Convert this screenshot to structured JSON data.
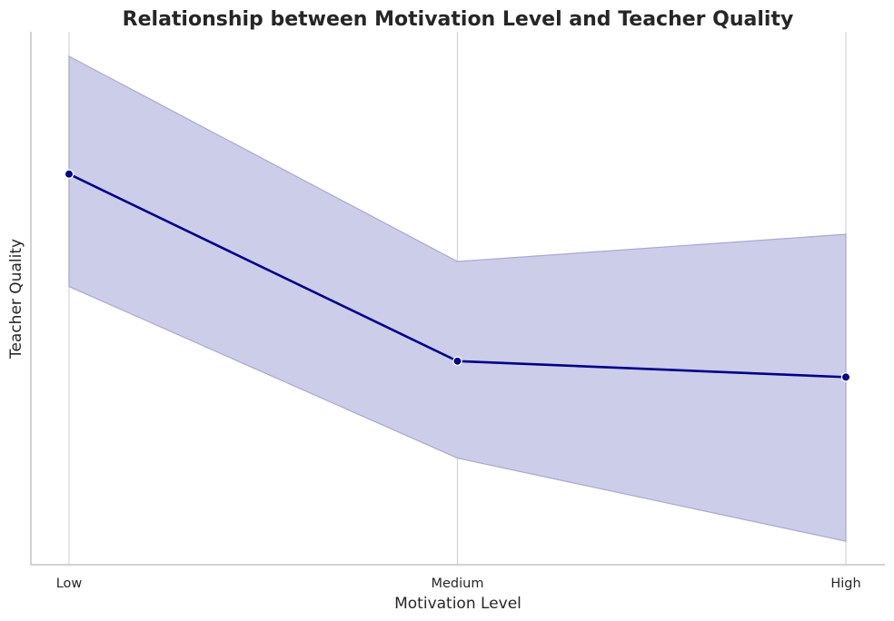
{
  "chart_data": {
    "type": "line",
    "title": "Relationship between Motivation Level and Teacher Quality",
    "xlabel": "Motivation Level",
    "ylabel": "Teacher Quality",
    "categories": [
      "Low",
      "Medium",
      "High"
    ],
    "series": [
      {
        "values": [
          0.733,
          0.382,
          0.352
        ],
        "ci_lower": [
          0.522,
          0.2,
          0.044
        ],
        "ci_upper": [
          0.954,
          0.569,
          0.62
        ],
        "color": "#00008b",
        "band_color": "#cccde8",
        "band_edge_color": "#a8a8d4"
      }
    ],
    "ylim": [
      0,
      1
    ],
    "yticks_shown": false,
    "grid": {
      "x": true,
      "y": false
    },
    "grid_color": "#d4d4d9",
    "axis_color": "#c3c3c7",
    "marker": "circle",
    "legend": "none"
  }
}
